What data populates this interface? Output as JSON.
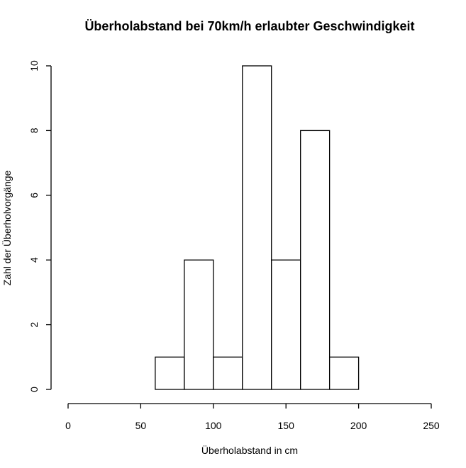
{
  "chart_data": {
    "type": "bar",
    "title": "Überholabstand bei 70km/h erlaubter Geschwindigkeit",
    "xlabel": "Überholabstand in cm",
    "ylabel": "Zahl der Überholvorgänge",
    "bins": [
      {
        "from": 60,
        "to": 80,
        "count": 1
      },
      {
        "from": 80,
        "to": 100,
        "count": 4
      },
      {
        "from": 100,
        "to": 120,
        "count": 1
      },
      {
        "from": 120,
        "to": 140,
        "count": 10
      },
      {
        "from": 140,
        "to": 160,
        "count": 4
      },
      {
        "from": 160,
        "to": 180,
        "count": 8
      },
      {
        "from": 180,
        "to": 200,
        "count": 1
      }
    ],
    "xlim": [
      0,
      250
    ],
    "ylim": [
      0,
      10
    ],
    "x_ticks": [
      0,
      50,
      100,
      150,
      200,
      250
    ],
    "y_ticks": [
      0,
      2,
      4,
      6,
      8,
      10
    ],
    "grid": false,
    "colors": {
      "bar_fill": "#ffffff",
      "bar_stroke": "#000000"
    }
  }
}
